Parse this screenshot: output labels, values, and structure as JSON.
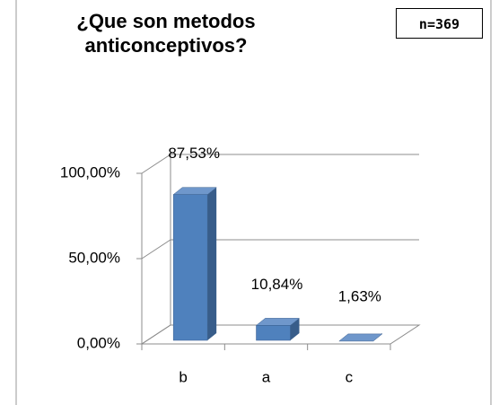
{
  "chart_data": {
    "type": "bar3d",
    "title": "¿Que son metodos anticonceptivos?",
    "annotation": "n=369",
    "categories": [
      "b",
      "a",
      "c"
    ],
    "values": [
      87.53,
      10.84,
      1.63
    ],
    "value_labels": [
      "87,53%",
      "10,84%",
      "1,63%"
    ],
    "color": "#4f81bd",
    "ylim": [
      0,
      100
    ],
    "yticks": [
      {
        "value": 0,
        "label": "0,00%"
      },
      {
        "value": 50,
        "label": "50,00%"
      },
      {
        "value": 100,
        "label": "100,00%"
      }
    ],
    "grid": true
  }
}
